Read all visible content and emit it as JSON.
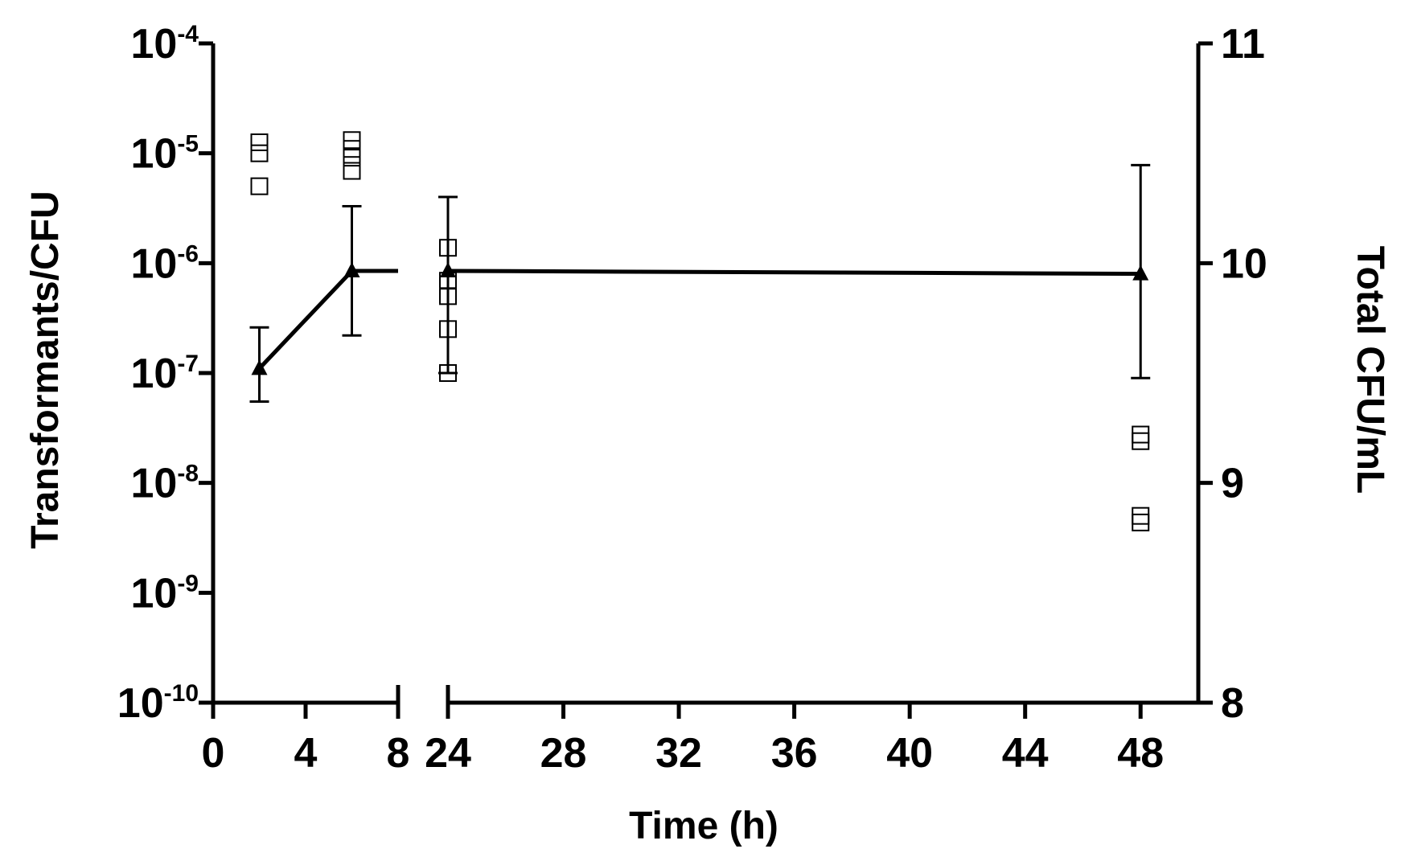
{
  "chart_data": {
    "type": "scatter",
    "title": "",
    "xlabel": "Time (h)",
    "ylabel": "Transformants/CFU",
    "y2label": "Total CFU/mL",
    "x_axis": {
      "broken": true,
      "segments": [
        {
          "range": [
            0,
            8
          ],
          "ticks": [
            0,
            4,
            8
          ]
        },
        {
          "range": [
            24,
            50
          ],
          "ticks": [
            24,
            28,
            32,
            36,
            40,
            44,
            48
          ]
        }
      ]
    },
    "y_axis": {
      "scale": "log",
      "range": [
        1e-10,
        0.0001
      ],
      "ticks": [
        {
          "value": 0.0001,
          "base": "10",
          "exp": "-4"
        },
        {
          "value": 1e-05,
          "base": "10",
          "exp": "-5"
        },
        {
          "value": 1e-06,
          "base": "10",
          "exp": "-6"
        },
        {
          "value": 1e-07,
          "base": "10",
          "exp": "-7"
        },
        {
          "value": 1e-08,
          "base": "10",
          "exp": "-8"
        },
        {
          "value": 1e-09,
          "base": "10",
          "exp": "-9"
        },
        {
          "value": 1e-10,
          "base": "10",
          "exp": "-10"
        }
      ]
    },
    "y2_axis": {
      "range": [
        8,
        11
      ],
      "ticks": [
        {
          "value": 8,
          "label": "8"
        },
        {
          "value": 9,
          "label": "9"
        },
        {
          "value": 10,
          "label": "10"
        },
        {
          "value": 11,
          "label": "11"
        }
      ]
    },
    "series": [
      {
        "marker": "filled-triangle",
        "axis": "left",
        "connected": true,
        "points": [
          {
            "x": 2,
            "y": 1.1e-07,
            "err_low": 5.5e-08,
            "err_high": 2.6e-07
          },
          {
            "x": 6,
            "y": 8.5e-07,
            "err_low": 2.2e-07,
            "err_high": 3.3e-06
          },
          {
            "x": 24,
            "y": 8.5e-07,
            "err_low": 1e-07,
            "err_high": 4e-06
          },
          {
            "x": 48,
            "y": 8e-07,
            "err_low": 9e-08,
            "err_high": 7.8e-06
          }
        ]
      },
      {
        "marker": "open-square",
        "axis": "right",
        "connected": false,
        "points": [
          {
            "x": 2,
            "y": 10.55
          },
          {
            "x": 2,
            "y": 10.5
          },
          {
            "x": 2,
            "y": 10.35
          },
          {
            "x": 6,
            "y": 10.56
          },
          {
            "x": 6,
            "y": 10.52
          },
          {
            "x": 6,
            "y": 10.48
          },
          {
            "x": 6,
            "y": 10.42
          },
          {
            "x": 24,
            "y": 10.07
          },
          {
            "x": 24,
            "y": 9.92
          },
          {
            "x": 24,
            "y": 9.85
          },
          {
            "x": 24,
            "y": 9.7
          },
          {
            "x": 24,
            "y": 9.5
          },
          {
            "x": 48,
            "y": 9.22
          },
          {
            "x": 48,
            "y": 9.19
          },
          {
            "x": 48,
            "y": 8.85
          },
          {
            "x": 48,
            "y": 8.82
          }
        ]
      }
    ],
    "grid": false,
    "legend": "none"
  }
}
